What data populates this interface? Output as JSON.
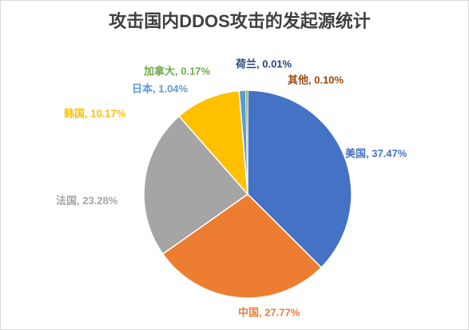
{
  "chart_data": {
    "type": "pie",
    "title": "攻击国内DDOS攻击的发起源统计",
    "categories": [
      "美国",
      "中国",
      "法国",
      "韩国",
      "日本",
      "加拿大",
      "荷兰",
      "其他"
    ],
    "values": [
      37.47,
      27.77,
      23.28,
      10.17,
      1.04,
      0.17,
      0.01,
      0.1
    ],
    "value_labels": [
      "美国, 37.47%",
      "中国, 27.77%",
      "法国, 23.28%",
      "韩国, 10.17%",
      "日本, 1.04%",
      "加拿大, 0.17%",
      "荷兰, 0.01%",
      "其他, 0.10%"
    ],
    "colors": [
      "#4472c4",
      "#ed7d31",
      "#a5a5a5",
      "#ffc000",
      "#5b9bd5",
      "#70ad47",
      "#264478",
      "#9e480e"
    ]
  }
}
